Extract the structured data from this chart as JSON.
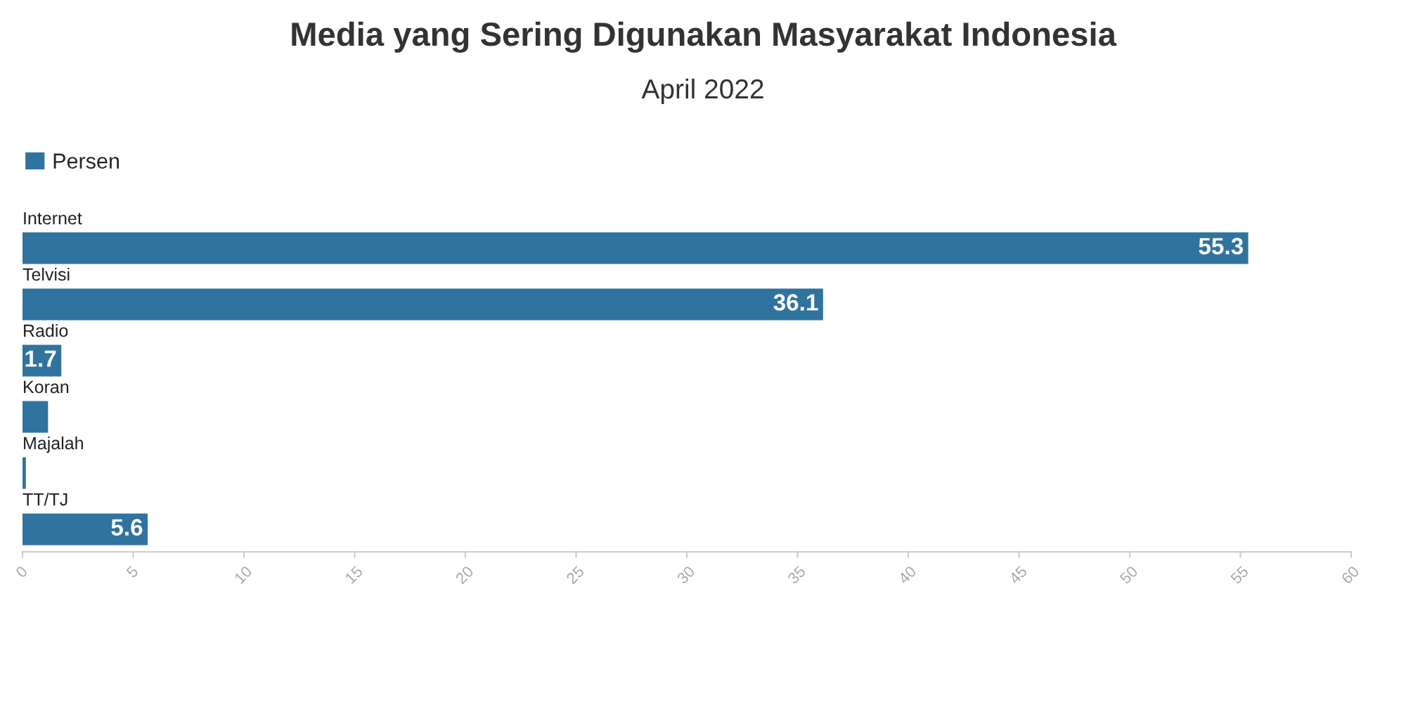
{
  "chart_data": {
    "type": "bar",
    "orientation": "horizontal",
    "title": "Media yang Sering Digunakan Masyarakat Indonesia",
    "subtitle": "April 2022",
    "categories": [
      "Internet",
      "Telvisi",
      "Radio",
      "Koran",
      "Majalah",
      "TT/TJ"
    ],
    "series": [
      {
        "name": "Persen",
        "color": "#31739f",
        "values": [
          55.3,
          36.1,
          1.7,
          1.1,
          0.1,
          5.6
        ],
        "value_labels": [
          "55.3",
          "36.1",
          "1.7",
          null,
          null,
          "5.6"
        ]
      }
    ],
    "xlim": [
      0,
      60
    ],
    "xticks": [
      0,
      5,
      10,
      15,
      20,
      25,
      30,
      35,
      40,
      45,
      50,
      55,
      60
    ],
    "grid": false,
    "legend": "top left"
  }
}
